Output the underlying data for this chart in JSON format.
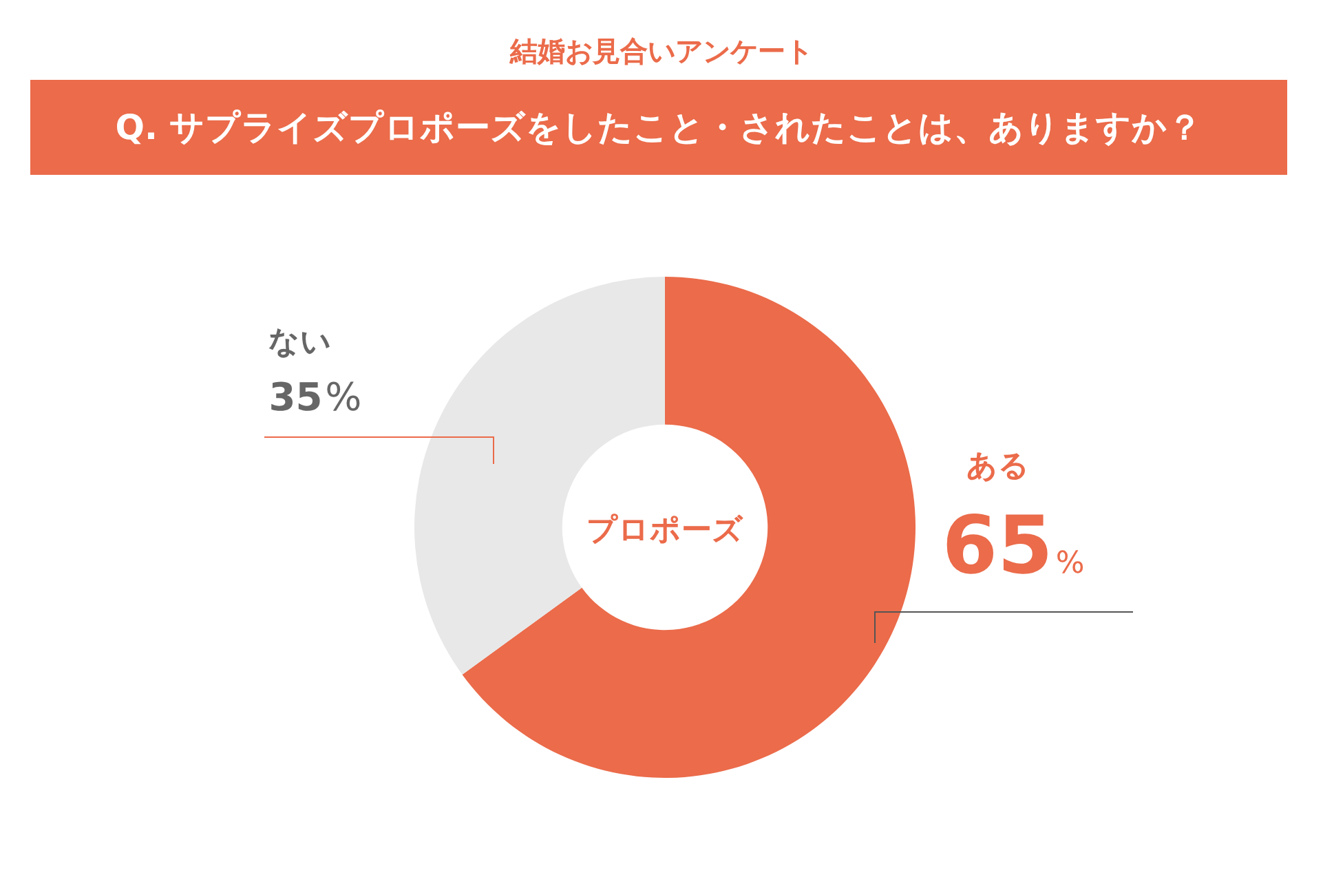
{
  "chart_data": {
    "type": "donut",
    "title": "結婚お見合いアンケート",
    "subtitle": "Q. サプライズプロポーズをしたこと・されたことは、ありますか？",
    "categories": [
      "ある",
      "ない"
    ],
    "values": [
      65,
      35
    ],
    "colors": [
      "#eb6b4a",
      "#e8e8e8"
    ],
    "value_labels": [
      "65%",
      "35%"
    ],
    "annotations": [
      "プロポーズ"
    ],
    "legend": false
  }
}
